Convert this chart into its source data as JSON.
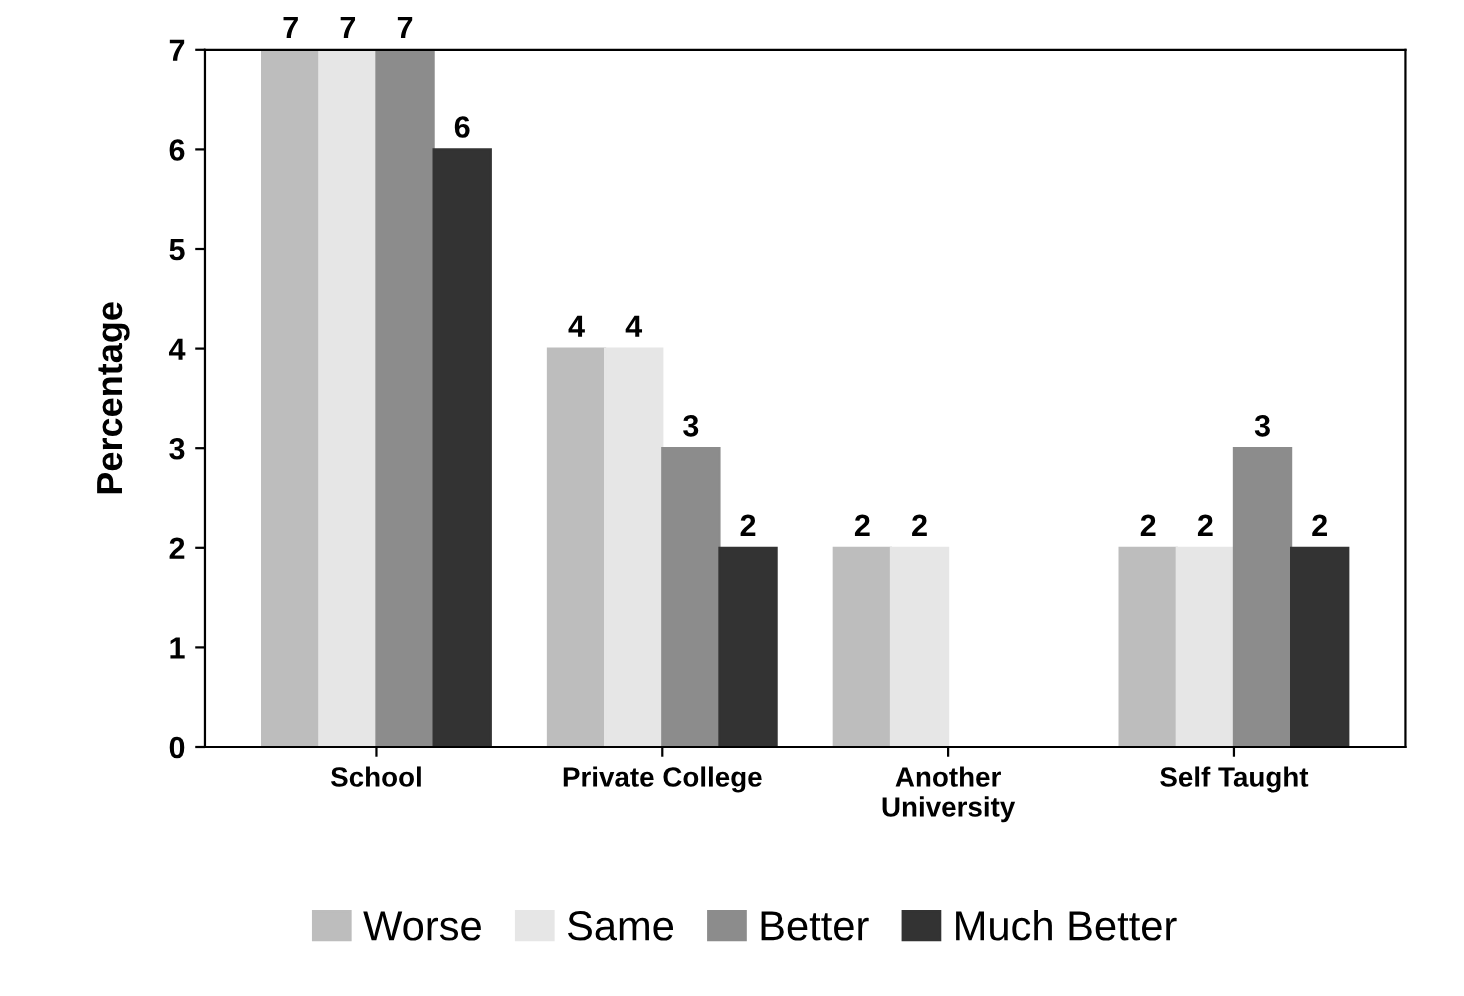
{
  "chart_data": {
    "type": "bar",
    "ylabel": "Percentage",
    "categories": [
      "School",
      "Private College",
      "Another\nUniversity",
      "Self Taught"
    ],
    "series": [
      {
        "name": "Worse",
        "color": "#bdbdbd",
        "values": [
          7,
          4,
          2,
          2
        ]
      },
      {
        "name": "Same",
        "color": "#e6e6e6",
        "values": [
          7,
          4,
          2,
          2
        ]
      },
      {
        "name": "Better",
        "color": "#8c8c8c",
        "values": [
          7,
          3,
          null,
          3
        ]
      },
      {
        "name": "Much Better",
        "color": "#333333",
        "values": [
          6,
          2,
          null,
          2
        ]
      }
    ],
    "ylim": [
      0,
      7
    ],
    "yticks": [
      0,
      1,
      2,
      3,
      4,
      5,
      6,
      7
    ],
    "grid": false,
    "legend": "bottom",
    "data_labels": true
  }
}
